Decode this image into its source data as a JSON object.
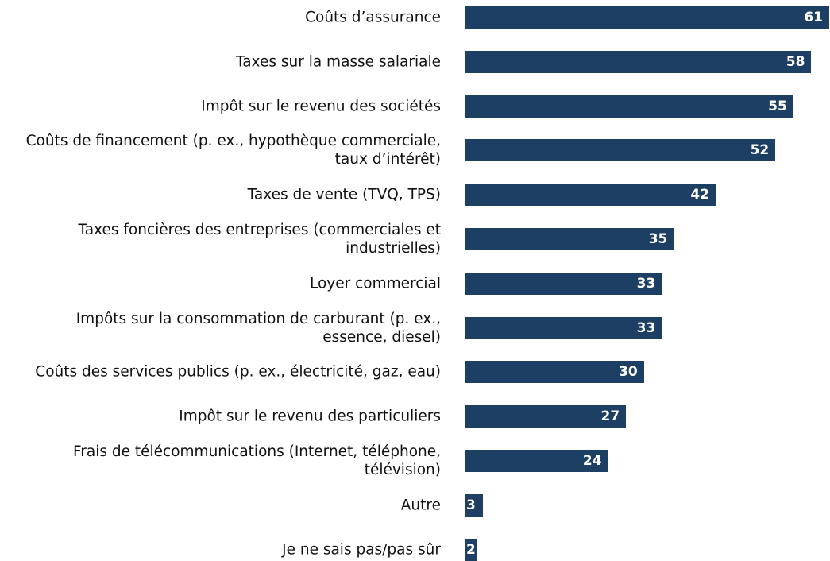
{
  "chart_data": {
    "type": "bar",
    "orientation": "horizontal",
    "categories": [
      "Coûts d’assurance",
      "Taxes sur la masse salariale",
      "Impôt sur le revenu des sociétés",
      "Coûts de financement (p. ex., hypothèque commerciale, taux d’intérêt)",
      "Taxes de vente (TVQ, TPS)",
      "Taxes foncières des entreprises (commerciales et industrielles)",
      "Loyer commercial",
      "Impôts sur la consommation de carburant (p. ex., essence, diesel)",
      "Coûts des services publics (p. ex., électricité, gaz, eau)",
      "Impôt sur le revenu des particuliers",
      "Frais de télécommunications (Internet, téléphone, télévision)",
      "Autre",
      "Je ne sais pas/pas sûr"
    ],
    "values": [
      61,
      58,
      55,
      52,
      42,
      35,
      33,
      33,
      30,
      27,
      24,
      3,
      2
    ],
    "color": "#1d3f63"
  }
}
